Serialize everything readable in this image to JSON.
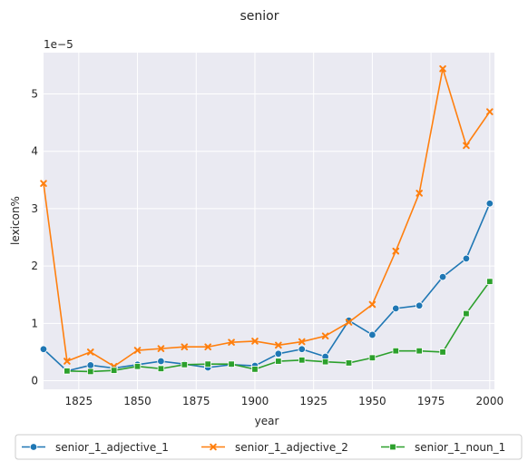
{
  "chart_data": {
    "type": "line",
    "title": "senior",
    "xlabel": "year",
    "ylabel": "lexicon%",
    "y_exponent_label": "1e−5",
    "xlim": [
      1810,
      2002
    ],
    "ylim": [
      -0.15,
      5.72
    ],
    "x_ticks": [
      1825,
      1850,
      1875,
      1900,
      1925,
      1950,
      1975,
      2000
    ],
    "y_ticks": [
      0,
      1,
      2,
      3,
      4,
      5
    ],
    "grid": true,
    "legend_position": "bottom",
    "x": [
      1810,
      1820,
      1830,
      1840,
      1850,
      1860,
      1870,
      1880,
      1890,
      1900,
      1910,
      1920,
      1930,
      1940,
      1950,
      1960,
      1970,
      1980,
      1990,
      2000
    ],
    "series": [
      {
        "name": "senior_1_adjective_1",
        "color": "#1f77b4",
        "marker": "circle",
        "values": [
          0.55,
          0.17,
          0.27,
          0.22,
          0.28,
          0.34,
          0.29,
          0.23,
          0.28,
          0.26,
          0.47,
          0.55,
          0.42,
          1.05,
          0.8,
          1.26,
          1.31,
          1.81,
          2.13,
          3.09
        ]
      },
      {
        "name": "senior_1_adjective_2",
        "color": "#ff7f0e",
        "marker": "x",
        "values": [
          3.44,
          0.34,
          0.5,
          0.25,
          0.53,
          0.56,
          0.59,
          0.59,
          0.67,
          0.69,
          0.62,
          0.68,
          0.78,
          1.02,
          1.33,
          2.26,
          3.27,
          5.44,
          4.1,
          4.69
        ]
      },
      {
        "name": "senior_1_noun_1",
        "color": "#2ca02c",
        "marker": "square",
        "values": [
          null,
          0.17,
          0.16,
          0.18,
          0.25,
          0.21,
          0.28,
          0.29,
          0.29,
          0.2,
          0.34,
          0.36,
          0.33,
          0.31,
          0.4,
          0.52,
          0.52,
          0.5,
          1.17,
          1.73
        ]
      }
    ]
  }
}
